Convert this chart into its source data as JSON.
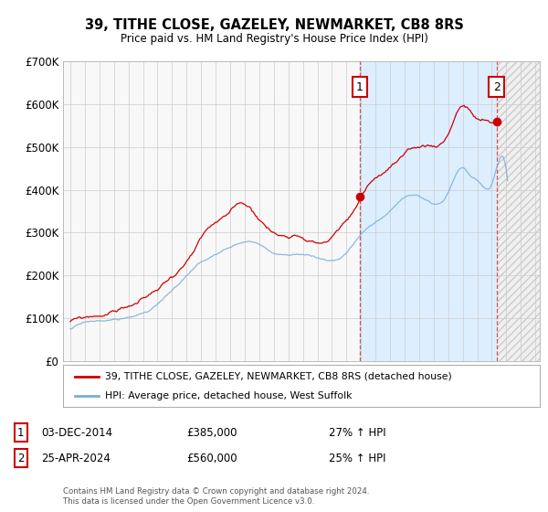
{
  "title": "39, TITHE CLOSE, GAZELEY, NEWMARKET, CB8 8RS",
  "subtitle": "Price paid vs. HM Land Registry's House Price Index (HPI)",
  "legend_line1": "39, TITHE CLOSE, GAZELEY, NEWMARKET, CB8 8RS (detached house)",
  "legend_line2": "HPI: Average price, detached house, West Suffolk",
  "annotation1_label": "1",
  "annotation1_date": "03-DEC-2014",
  "annotation1_price": "£385,000",
  "annotation1_hpi": "27% ↑ HPI",
  "annotation2_label": "2",
  "annotation2_date": "25-APR-2024",
  "annotation2_price": "£560,000",
  "annotation2_hpi": "25% ↑ HPI",
  "footnote": "Contains HM Land Registry data © Crown copyright and database right 2024.\nThis data is licensed under the Open Government Licence v3.0.",
  "price_color": "#cc0000",
  "hpi_color": "#7aaddb",
  "background_color": "#ffffff",
  "plot_bg_color": "#f0f0f0",
  "shade_color": "#ddeeff",
  "hatch_color": "#cccccc",
  "ylim": [
    0,
    700000
  ],
  "yticks": [
    0,
    100000,
    200000,
    300000,
    400000,
    500000,
    600000,
    700000
  ],
  "ytick_labels": [
    "£0",
    "£100K",
    "£200K",
    "£300K",
    "£400K",
    "£500K",
    "£600K",
    "£700K"
  ],
  "xtick_years": [
    1995,
    1996,
    1997,
    1998,
    1999,
    2000,
    2001,
    2002,
    2003,
    2004,
    2005,
    2006,
    2007,
    2008,
    2009,
    2010,
    2011,
    2012,
    2013,
    2014,
    2015,
    2016,
    2017,
    2018,
    2019,
    2020,
    2021,
    2022,
    2023,
    2024,
    2025,
    2026,
    2027
  ],
  "sale1_x": 2014.92,
  "sale1_y": 385000,
  "sale2_x": 2024.32,
  "sale2_y": 560000,
  "xlim_left": 1994.5,
  "xlim_right": 2027.3
}
